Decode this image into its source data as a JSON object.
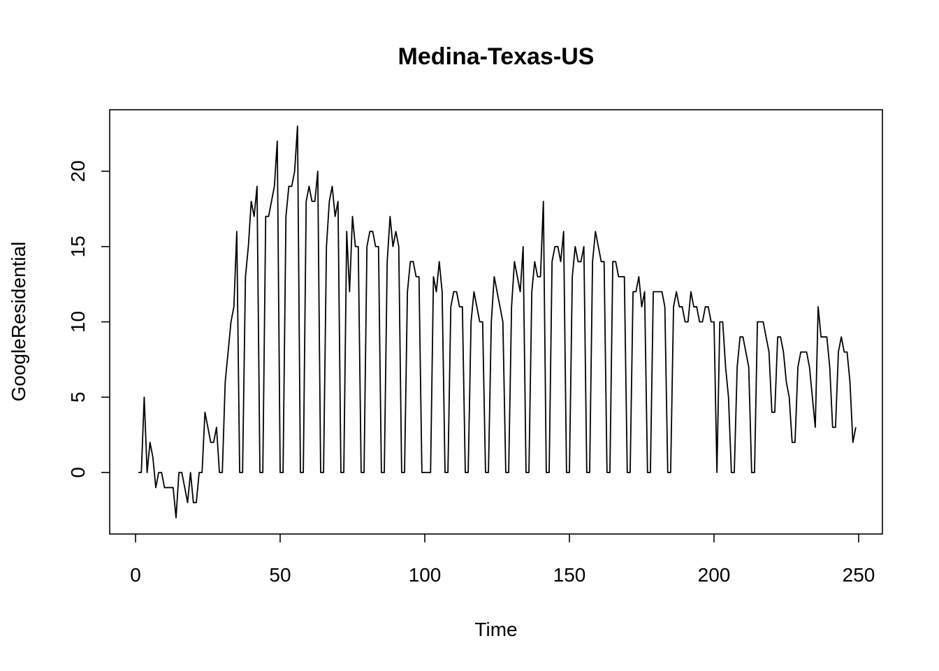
{
  "chart_data": {
    "type": "line",
    "title": "Medina-Texas-US",
    "xlabel": "Time",
    "ylabel": "GoogleResidential",
    "xlim": [
      0,
      250
    ],
    "ylim": [
      -3,
      23
    ],
    "xticks": [
      0,
      50,
      100,
      150,
      200,
      250
    ],
    "yticks": [
      0,
      5,
      10,
      15,
      20
    ],
    "grid": false,
    "legend": "none",
    "series": [
      {
        "color": "#000000",
        "x_start": 1,
        "values": [
          0,
          0,
          5,
          0,
          2,
          1,
          -1,
          0,
          0,
          -1,
          -1,
          -1,
          -1,
          -3,
          0,
          0,
          -1,
          -2,
          0,
          -2,
          -2,
          0,
          0,
          4,
          3,
          2,
          2,
          3,
          0,
          0,
          6,
          8,
          10,
          11,
          16,
          0,
          0,
          13,
          15,
          18,
          17,
          19,
          0,
          0,
          17,
          17,
          18,
          19,
          22,
          0,
          0,
          17,
          19,
          19,
          20,
          23,
          0,
          0,
          18,
          19,
          18,
          18,
          20,
          0,
          0,
          15,
          18,
          19,
          17,
          18,
          0,
          0,
          16,
          12,
          17,
          15,
          15,
          0,
          0,
          15,
          16,
          16,
          15,
          15,
          0,
          0,
          14,
          17,
          15,
          16,
          15,
          0,
          0,
          12,
          14,
          14,
          13,
          13,
          0,
          0,
          0,
          0,
          13,
          12,
          14,
          12,
          0,
          0,
          11,
          12,
          12,
          11,
          11,
          0,
          0,
          10,
          12,
          11,
          10,
          10,
          0,
          0,
          10,
          13,
          12,
          11,
          10,
          0,
          0,
          11,
          14,
          13,
          12,
          15,
          0,
          0,
          12,
          14,
          13,
          13,
          18,
          0,
          0,
          14,
          15,
          15,
          14,
          16,
          0,
          0,
          13,
          15,
          14,
          14,
          15,
          0,
          0,
          14,
          16,
          15,
          14,
          14,
          0,
          0,
          14,
          14,
          13,
          13,
          13,
          0,
          0,
          12,
          12,
          13,
          11,
          12,
          0,
          0,
          12,
          12,
          12,
          12,
          11,
          0,
          0,
          11,
          12,
          11,
          11,
          10,
          10,
          12,
          11,
          11,
          10,
          10,
          11,
          11,
          10,
          10,
          0,
          10,
          10,
          7,
          5,
          0,
          0,
          7,
          9,
          9,
          8,
          7,
          0,
          0,
          10,
          10,
          10,
          9,
          8,
          4,
          4,
          9,
          9,
          8,
          6,
          5,
          2,
          2,
          7,
          8,
          8,
          8,
          7,
          5,
          3,
          11,
          9,
          9,
          9,
          7,
          3,
          3,
          8,
          9,
          8,
          8,
          6,
          2,
          3
        ]
      }
    ]
  }
}
